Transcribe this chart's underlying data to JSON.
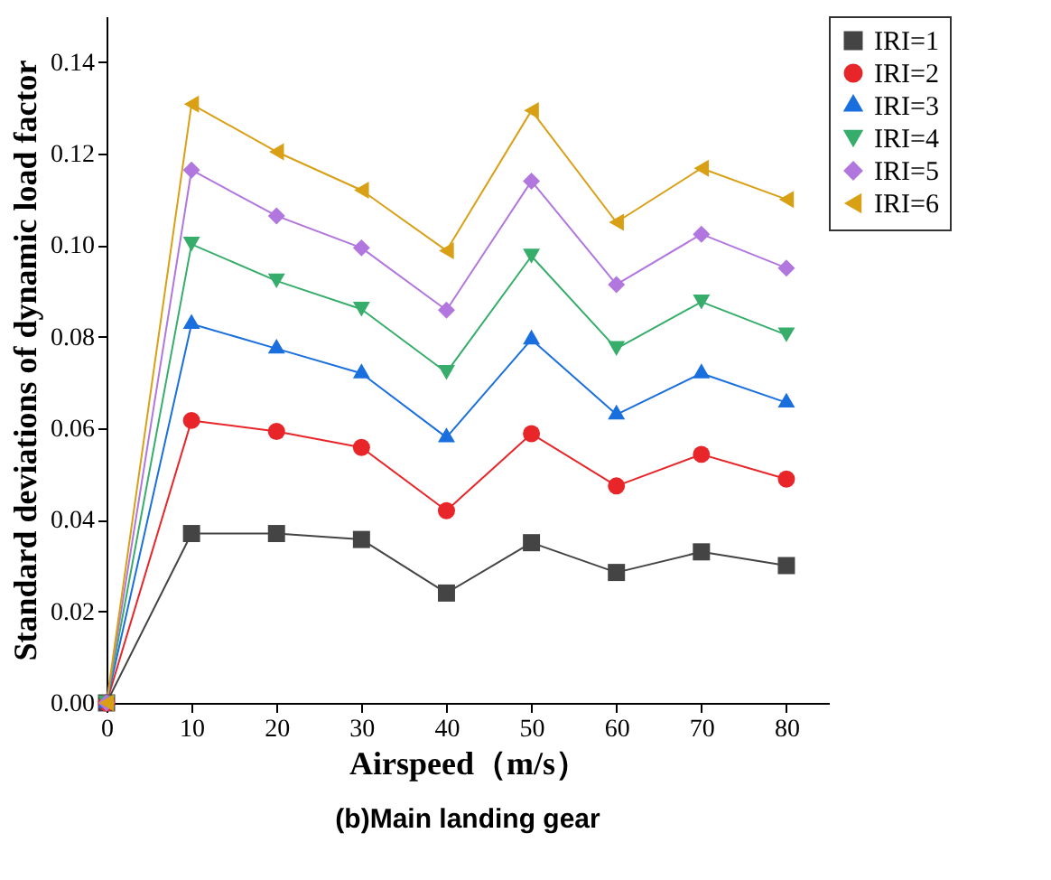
{
  "chart_data": {
    "type": "line",
    "title": "(b)Main landing gear",
    "xlabel": "Airspeed（m/s）",
    "ylabel": "Standard deviations of dynamic load factor",
    "x": [
      0,
      10,
      20,
      30,
      40,
      50,
      60,
      70,
      80
    ],
    "xlim": [
      0,
      85
    ],
    "xticks": [
      0,
      10,
      20,
      30,
      40,
      50,
      60,
      70,
      80
    ],
    "ylim": [
      0,
      0.15
    ],
    "yticks": [
      {
        "value": 0,
        "label": "0.00"
      },
      {
        "value": 0.02,
        "label": "0.02"
      },
      {
        "value": 0.04,
        "label": "0.04"
      },
      {
        "value": 0.06,
        "label": "0.06"
      },
      {
        "value": 0.08,
        "label": "0.08"
      },
      {
        "value": 0.1,
        "label": "0.10"
      },
      {
        "value": 0.12,
        "label": "0.12"
      },
      {
        "value": 0.14,
        "label": "0.14"
      }
    ],
    "grid": false,
    "legend": "right",
    "line_style": "solid",
    "series": [
      {
        "name": "IRI=1",
        "color": "#444444",
        "marker": "square",
        "values": [
          0,
          0.037,
          0.037,
          0.0357,
          0.024,
          0.035,
          0.0285,
          0.033,
          0.03
        ]
      },
      {
        "name": "IRI=2",
        "color": "#e8262a",
        "marker": "circle",
        "values": [
          0,
          0.0617,
          0.0593,
          0.0558,
          0.042,
          0.0588,
          0.0474,
          0.0543,
          0.0489
        ]
      },
      {
        "name": "IRI=3",
        "color": "#1a6fdf",
        "marker": "triangle",
        "values": [
          0,
          0.0828,
          0.0774,
          0.072,
          0.058,
          0.0794,
          0.063,
          0.072,
          0.0656
        ]
      },
      {
        "name": "IRI=4",
        "color": "#37ad6b",
        "marker": "triangle-down",
        "values": [
          0,
          0.1002,
          0.0922,
          0.086,
          0.0722,
          0.0976,
          0.0774,
          0.0876,
          0.0804
        ]
      },
      {
        "name": "IRI=5",
        "color": "#b177de",
        "marker": "diamond",
        "values": [
          0,
          0.1164,
          0.1064,
          0.0994,
          0.0858,
          0.114,
          0.0914,
          0.1024,
          0.095
        ]
      },
      {
        "name": "IRI=6",
        "color": "#d9a016",
        "marker": "triangle-left",
        "values": [
          0,
          0.1308,
          0.1204,
          0.112,
          0.0988,
          0.1294,
          0.105,
          0.1168,
          0.11
        ]
      }
    ]
  }
}
